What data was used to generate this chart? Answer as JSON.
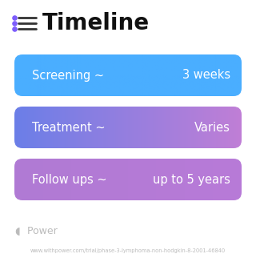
{
  "title": "Timeline",
  "title_icon_color": "#7c5cfc",
  "title_fontsize": 20,
  "title_color": "#111111",
  "background_color": "#ffffff",
  "rows": [
    {
      "left_label": "Screening ~",
      "right_label": "3 weeks",
      "grad_left": "#4aaeff",
      "grad_right": "#4aaeff"
    },
    {
      "left_label": "Treatment ~",
      "right_label": "Varies",
      "grad_left": "#6b7fe8",
      "grad_right": "#c07ed6"
    },
    {
      "left_label": "Follow ups ~",
      "right_label": "up to 5 years",
      "grad_left": "#b07bd4",
      "grad_right": "#b87ad8"
    }
  ],
  "font_color": "#ffffff",
  "label_fontsize": 10.5,
  "watermark_text": " Power",
  "watermark_color": "#bbbbbb",
  "watermark_fontsize": 9,
  "url_text": "www.withpower.com/trial/phase-3-lymphoma-non-hodgkin-8-2001-46840",
  "url_color": "#bbbbbb",
  "url_fontsize": 4.8
}
